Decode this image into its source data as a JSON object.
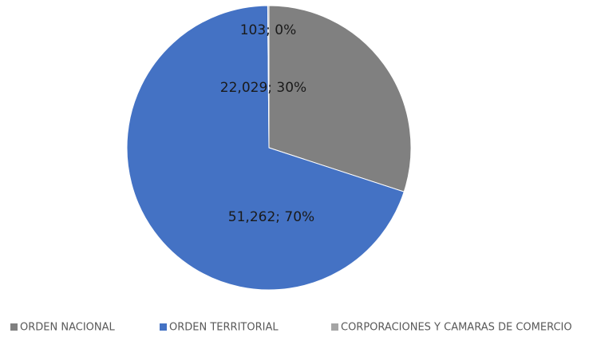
{
  "chart_data": {
    "type": "pie",
    "categories": [
      "ORDEN NACIONAL",
      "ORDEN TERRITORIAL",
      "CORPORACIONES Y CAMARAS DE COMERCIO"
    ],
    "values": [
      22029,
      51262,
      103
    ],
    "value_labels": [
      "22,029; 30%",
      "51,262; 70%",
      "103; 0%"
    ],
    "colors": [
      "#808080",
      "#4472c4",
      "#a5a5a5"
    ],
    "legend": "bottom"
  }
}
